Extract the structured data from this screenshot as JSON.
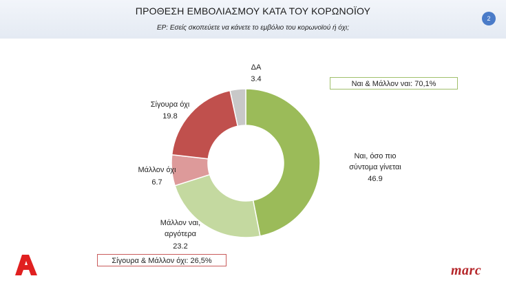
{
  "header": {
    "title": "ΠΡΟΘΕΣΗ ΕΜΒΟΛΙΑΣΜΟΥ ΚΑΤΑ ΤΟΥ ΚΟΡΩΝΟΪΟΥ",
    "subtitle": "ΕΡ: Εσείς σκοπεύετε να κάνετε το εμβόλιο του κορωνοϊού ή όχι;",
    "page_number": "2"
  },
  "summary": {
    "yes_total": "Ναι & Μάλλον ναι: 70,1%",
    "no_total": "Σίγουρα & Μάλλον όχι: 26,5%"
  },
  "chart_data": {
    "type": "pie",
    "donut": true,
    "slices": [
      {
        "label": "Ναι, όσο πιο σύντομα γίνεται",
        "value": 46.9,
        "color": "#9bbb59"
      },
      {
        "label": "Μάλλον ναι, αργότερα",
        "value": 23.2,
        "color": "#c4d9a0"
      },
      {
        "label": "Μάλλον όχι",
        "value": 6.7,
        "color": "#dd9a9a"
      },
      {
        "label": "Σίγουρα όχι",
        "value": 19.8,
        "color": "#c0504d"
      },
      {
        "label": "ΔΑ",
        "value": 3.4,
        "color": "#c8c8c8"
      }
    ]
  },
  "labels": {
    "slice0_line1": "Ναι, όσο πιο",
    "slice0_line2": "σύντομα γίνεται",
    "slice0_value": "46.9",
    "slice1_line1": "Μάλλον ναι,",
    "slice1_line2": "αργότερα",
    "slice1_value": "23.2",
    "slice2_line1": "Μάλλον όχι",
    "slice2_value": "6.7",
    "slice3_line1": "Σίγουρα όχι",
    "slice3_value": "19.8",
    "slice4_line1": "ΔΑ",
    "slice4_value": "3.4"
  },
  "branding": {
    "channel_logo": "alpha-logo",
    "marc_logo": "marc"
  }
}
